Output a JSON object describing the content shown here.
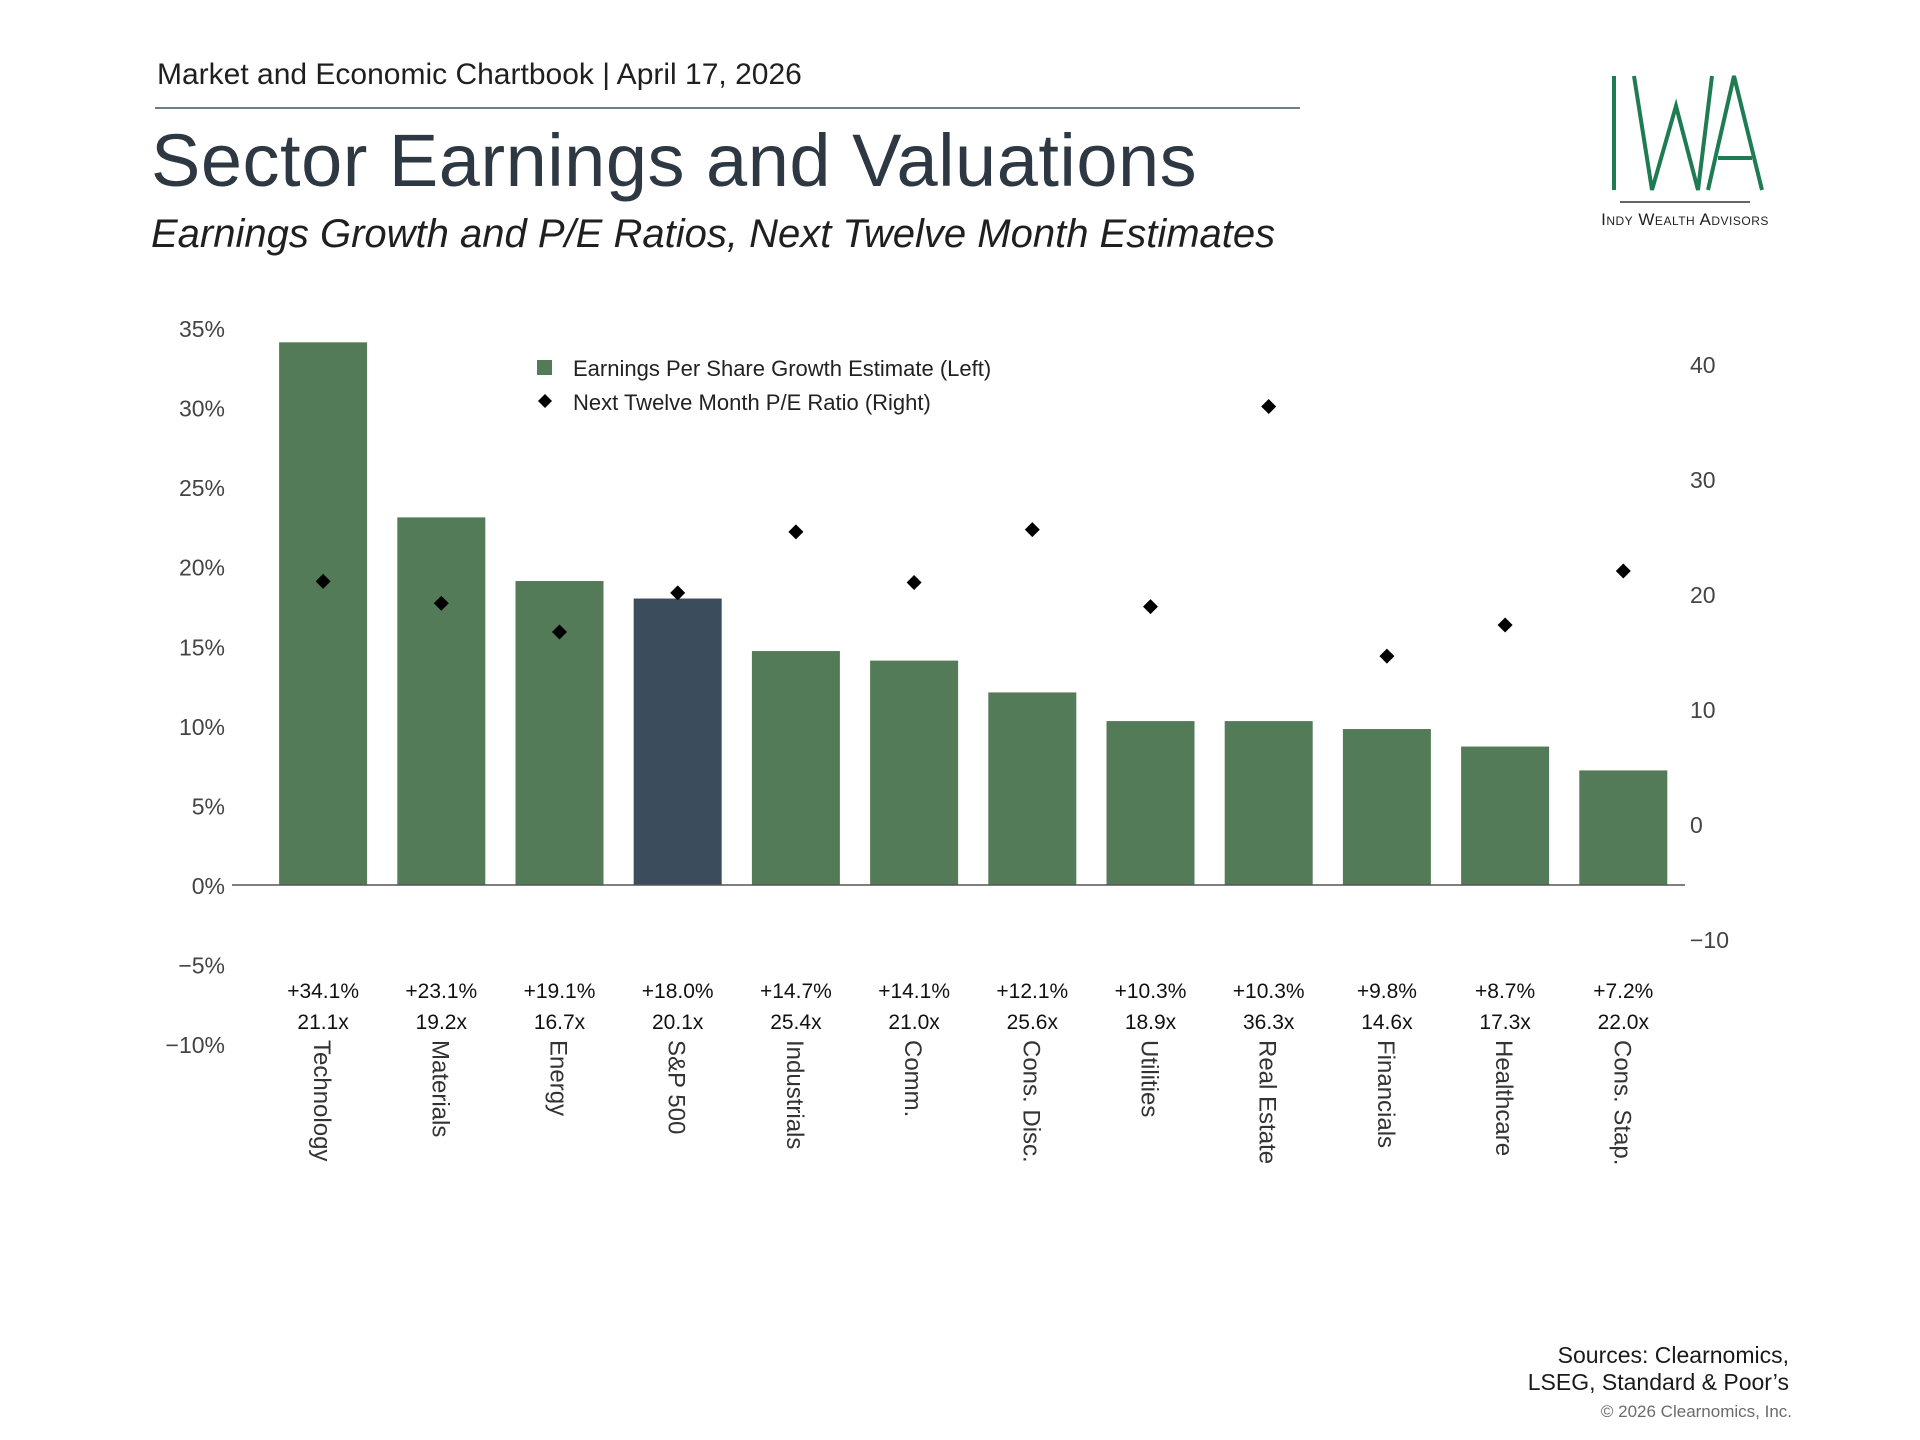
{
  "header": {
    "chartbook": "Market and Economic Chartbook | April 17, 2026",
    "title": "Sector Earnings and Valuations",
    "subtitle": "Earnings Growth and P/E Ratios, Next Twelve Month Estimates"
  },
  "logo": {
    "text": "Indy Wealth Advisors",
    "mark_color": "#1e7b52"
  },
  "footer": {
    "sources_line1": "Sources: Clearnomics,",
    "sources_line2": "LSEG, Standard & Poor’s",
    "copyright": "© 2026 Clearnomics, Inc."
  },
  "colors": {
    "bar": "#537b58",
    "highlight_bar": "#3b4d5c",
    "marker": "#000000",
    "axis": "#555555"
  },
  "chart_data": {
    "type": "bar",
    "categories": [
      "Technology",
      "Materials",
      "Energy",
      "S&P 500",
      "Industrials",
      "Comm.",
      "Cons. Disc.",
      "Utilities",
      "Real Estate",
      "Financials",
      "Healthcare",
      "Cons. Stap."
    ],
    "series": [
      {
        "name": "Earnings Per Share Growth Estimate (Left)",
        "type": "bar",
        "axis": "left",
        "values": [
          34.1,
          23.1,
          19.1,
          18.0,
          14.7,
          14.1,
          12.1,
          10.3,
          10.3,
          9.8,
          8.7,
          7.2
        ],
        "labels": [
          "+34.1%",
          "+23.1%",
          "+19.1%",
          "+18.0%",
          "+14.7%",
          "+14.1%",
          "+12.1%",
          "+10.3%",
          "+10.3%",
          "+9.8%",
          "+8.7%",
          "+7.2%"
        ]
      },
      {
        "name": "Next Twelve Month P/E Ratio (Right)",
        "type": "scatter",
        "axis": "right",
        "values": [
          21.1,
          19.2,
          16.7,
          20.1,
          25.4,
          21.0,
          25.6,
          18.9,
          36.3,
          14.6,
          17.3,
          22.0
        ],
        "labels": [
          "21.1x",
          "19.2x",
          "16.7x",
          "20.1x",
          "25.4x",
          "21.0x",
          "25.6x",
          "18.9x",
          "36.3x",
          "14.6x",
          "17.3x",
          "22.0x"
        ]
      }
    ],
    "highlight_category": "S&P 500",
    "left_axis": {
      "ylim": [
        -10,
        35
      ],
      "ticks": [
        "−10%",
        "−5%",
        "0%",
        "5%",
        "10%",
        "15%",
        "20%",
        "25%",
        "30%",
        "35%"
      ],
      "tick_values": [
        -10,
        -5,
        0,
        5,
        10,
        15,
        20,
        25,
        30,
        35
      ]
    },
    "right_axis": {
      "ylim": [
        -10,
        40
      ],
      "ticks": [
        "−10",
        "0",
        "10",
        "20",
        "30",
        "40"
      ],
      "tick_values": [
        -10,
        0,
        10,
        20,
        30,
        40
      ]
    },
    "legend_position": "top-center",
    "grid": false
  }
}
